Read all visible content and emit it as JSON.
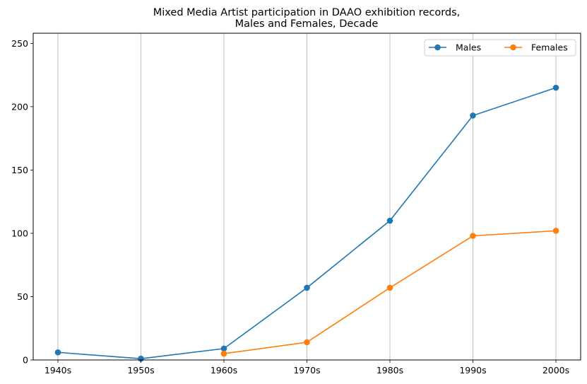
{
  "chart_data": {
    "type": "line",
    "title": "Mixed Media Artist participation in DAAO exhibition records,\nMales and Females, Decade",
    "xlabel": "",
    "ylabel": "",
    "categories": [
      "1940s",
      "1950s",
      "1960s",
      "1970s",
      "1980s",
      "1990s",
      "2000s"
    ],
    "ylim": [
      0,
      258
    ],
    "yticks": [
      0,
      50,
      100,
      150,
      200,
      250
    ],
    "grid": "vertical",
    "legend_position": "top-right",
    "series": [
      {
        "name": "Males",
        "color": "#1f77b4",
        "values": [
          6,
          1,
          9,
          57,
          110,
          193,
          215
        ]
      },
      {
        "name": "Females",
        "color": "#ff7f0e",
        "values": [
          null,
          null,
          5,
          14,
          57,
          98,
          102
        ]
      }
    ]
  }
}
